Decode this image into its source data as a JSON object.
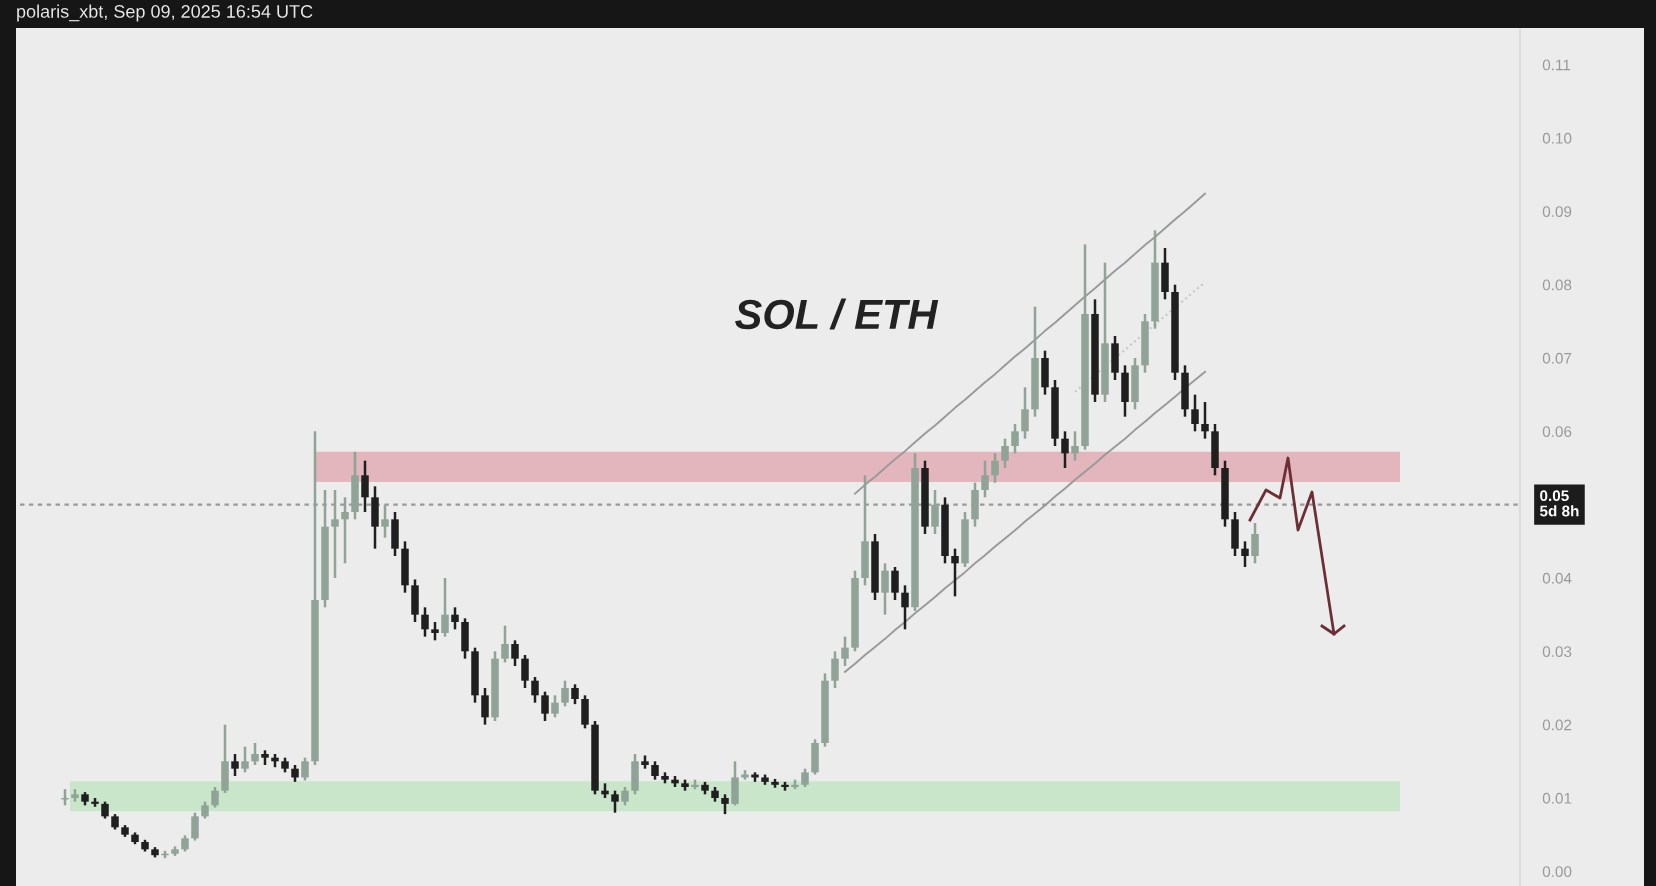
{
  "chart_data": {
    "type": "candlestick",
    "title": "SOL / ETH",
    "annotations": [
      "polaris_xbt, Sep 09, 2025 16:54 UTC"
    ],
    "categories": [
      null,
      null,
      null,
      null,
      null,
      null,
      null,
      null,
      null,
      null,
      null,
      null,
      null,
      null,
      null,
      null,
      null,
      null,
      null,
      null,
      null,
      null,
      null,
      null,
      null,
      null,
      null,
      null,
      null,
      null,
      null,
      null,
      null,
      null,
      null,
      null,
      null,
      null,
      null,
      null,
      null,
      null,
      null,
      null,
      null,
      null,
      null,
      null,
      null,
      null,
      null,
      null,
      null,
      null,
      null,
      null,
      null,
      null,
      null,
      null,
      null,
      null,
      null,
      null,
      null,
      null,
      null,
      null,
      null,
      null,
      null,
      null,
      null,
      null,
      null,
      null,
      null,
      null,
      null,
      null,
      null,
      null,
      null,
      null,
      null,
      null,
      null,
      null,
      null,
      null,
      null,
      null,
      null,
      null,
      null,
      null,
      null,
      null,
      null,
      null,
      null,
      null,
      null,
      null,
      null,
      null,
      null,
      null,
      null,
      null,
      null,
      null,
      null,
      null,
      null,
      null,
      null,
      null,
      null,
      null,
      null,
      null,
      null,
      null,
      null,
      null,
      null,
      null,
      null,
      null,
      null,
      null,
      null,
      null,
      null,
      null,
      null,
      null,
      null,
      null,
      null,
      null,
      null,
      null,
      null,
      null,
      null,
      null,
      null,
      null
    ],
    "ohlc": [
      null,
      null,
      null,
      null,
      [
        0.0098,
        0.0112,
        0.009,
        0.01
      ],
      [
        0.01,
        0.0112,
        0.0095,
        0.0105
      ],
      [
        0.0105,
        0.0108,
        0.009,
        0.0095
      ],
      [
        0.0095,
        0.01,
        0.0088,
        0.0092
      ],
      [
        0.0092,
        0.0095,
        0.0072,
        0.0075
      ],
      [
        0.0075,
        0.0078,
        0.0057,
        0.006
      ],
      [
        0.006,
        0.0063,
        0.0047,
        0.005
      ],
      [
        0.005,
        0.0053,
        0.0037,
        0.004
      ],
      [
        0.004,
        0.0043,
        0.0027,
        0.003
      ],
      [
        0.003,
        0.0033,
        0.0019,
        0.0022
      ],
      [
        0.0022,
        0.0028,
        0.0018,
        0.0024
      ],
      [
        0.0024,
        0.0034,
        0.0021,
        0.003
      ],
      [
        0.003,
        0.0049,
        0.0027,
        0.0045
      ],
      [
        0.0045,
        0.008,
        0.0042,
        0.0075
      ],
      [
        0.0075,
        0.0095,
        0.0072,
        0.009
      ],
      [
        0.009,
        0.0115,
        0.0087,
        0.011
      ],
      [
        0.011,
        0.02,
        0.0107,
        0.015
      ],
      [
        0.015,
        0.016,
        0.013,
        0.014
      ],
      [
        0.014,
        0.017,
        0.0135,
        0.015
      ],
      [
        0.015,
        0.0175,
        0.0145,
        0.016
      ],
      [
        0.016,
        0.0165,
        0.0145,
        0.0155
      ],
      [
        0.0155,
        0.016,
        0.0142,
        0.015
      ],
      [
        0.015,
        0.0155,
        0.0135,
        0.014
      ],
      [
        0.014,
        0.0145,
        0.0122,
        0.0128
      ],
      [
        0.0128,
        0.0155,
        0.0124,
        0.015
      ],
      [
        0.015,
        0.06,
        0.0145,
        0.037
      ],
      [
        0.037,
        0.052,
        0.036,
        0.047
      ],
      [
        0.047,
        0.052,
        0.04,
        0.048
      ],
      [
        0.048,
        0.051,
        0.042,
        0.049
      ],
      [
        0.049,
        0.0572,
        0.048,
        0.054
      ],
      [
        0.054,
        0.056,
        0.049,
        0.051
      ],
      [
        0.051,
        0.0525,
        0.044,
        0.047
      ],
      [
        0.047,
        0.05,
        0.0455,
        0.048
      ],
      [
        0.048,
        0.049,
        0.043,
        0.044
      ],
      [
        0.044,
        0.045,
        0.038,
        0.039
      ],
      [
        0.039,
        0.0398,
        0.034,
        0.035
      ],
      [
        0.035,
        0.036,
        0.032,
        0.033
      ],
      [
        0.033,
        0.034,
        0.0315,
        0.0325
      ],
      [
        0.0325,
        0.04,
        0.032,
        0.035
      ],
      [
        0.035,
        0.036,
        0.033,
        0.034
      ],
      [
        0.034,
        0.0345,
        0.029,
        0.03
      ],
      [
        0.03,
        0.0305,
        0.023,
        0.024
      ],
      [
        0.024,
        0.025,
        0.02,
        0.021
      ],
      [
        0.021,
        0.03,
        0.0205,
        0.029
      ],
      [
        0.029,
        0.0335,
        0.0285,
        0.031
      ],
      [
        0.031,
        0.0315,
        0.028,
        0.029
      ],
      [
        0.029,
        0.0295,
        0.025,
        0.026
      ],
      [
        0.026,
        0.0265,
        0.023,
        0.024
      ],
      [
        0.024,
        0.0245,
        0.0205,
        0.0215
      ],
      [
        0.0215,
        0.024,
        0.021,
        0.023
      ],
      [
        0.023,
        0.026,
        0.0225,
        0.025
      ],
      [
        0.025,
        0.0255,
        0.0228,
        0.0235
      ],
      [
        0.0235,
        0.024,
        0.0195,
        0.02
      ],
      [
        0.02,
        0.0205,
        0.0105,
        0.011
      ],
      [
        0.011,
        0.012,
        0.01,
        0.0105
      ],
      [
        0.0105,
        0.011,
        0.008,
        0.0095
      ],
      [
        0.0095,
        0.0115,
        0.009,
        0.011
      ],
      [
        0.011,
        0.016,
        0.0105,
        0.015
      ],
      [
        0.015,
        0.0158,
        0.014,
        0.0145
      ],
      [
        0.0145,
        0.015,
        0.0125,
        0.013
      ],
      [
        0.013,
        0.0135,
        0.012,
        0.0125
      ],
      [
        0.0125,
        0.013,
        0.0115,
        0.012
      ],
      [
        0.012,
        0.0125,
        0.011,
        0.0115
      ],
      [
        0.0115,
        0.0125,
        0.0112,
        0.0118
      ],
      [
        0.0118,
        0.0122,
        0.0105,
        0.011
      ],
      [
        0.011,
        0.0115,
        0.0095,
        0.01
      ],
      [
        0.01,
        0.0105,
        0.0078,
        0.0092
      ],
      [
        0.0092,
        0.015,
        0.009,
        0.0128
      ],
      [
        0.0128,
        0.0138,
        0.0125,
        0.0132
      ],
      [
        0.0132,
        0.0135,
        0.0122,
        0.0128
      ],
      [
        0.0128,
        0.0132,
        0.0118,
        0.0122
      ],
      [
        0.0122,
        0.0126,
        0.0114,
        0.0118
      ],
      [
        0.0118,
        0.0122,
        0.011,
        0.0115
      ],
      [
        0.0115,
        0.0125,
        0.0112,
        0.0118
      ],
      [
        0.0118,
        0.014,
        0.0115,
        0.0135
      ],
      [
        0.0135,
        0.018,
        0.0132,
        0.0175
      ],
      [
        0.0175,
        0.027,
        0.017,
        0.026
      ],
      [
        0.026,
        0.03,
        0.025,
        0.029
      ],
      [
        0.029,
        0.032,
        0.028,
        0.0305
      ],
      [
        0.0305,
        0.041,
        0.03,
        0.04
      ],
      [
        0.04,
        0.054,
        0.039,
        0.045
      ],
      [
        0.045,
        0.046,
        0.037,
        0.038
      ],
      [
        0.038,
        0.042,
        0.035,
        0.041
      ],
      [
        0.041,
        0.0415,
        0.037,
        0.038
      ],
      [
        0.038,
        0.039,
        0.033,
        0.036
      ],
      [
        0.036,
        0.057,
        0.0355,
        0.055
      ],
      [
        0.055,
        0.056,
        0.046,
        0.047
      ],
      [
        0.047,
        0.052,
        0.046,
        0.05
      ],
      [
        0.05,
        0.051,
        0.042,
        0.043
      ],
      [
        0.043,
        0.044,
        0.0375,
        0.042
      ],
      [
        0.042,
        0.049,
        0.0415,
        0.048
      ],
      [
        0.048,
        0.053,
        0.047,
        0.052
      ],
      [
        0.052,
        0.056,
        0.051,
        0.054
      ],
      [
        0.054,
        0.057,
        0.053,
        0.056
      ],
      [
        0.056,
        0.059,
        0.055,
        0.058
      ],
      [
        0.058,
        0.061,
        0.057,
        0.06
      ],
      [
        0.06,
        0.066,
        0.059,
        0.063
      ],
      [
        0.063,
        0.077,
        0.062,
        0.07
      ],
      [
        0.07,
        0.071,
        0.065,
        0.066
      ],
      [
        0.066,
        0.067,
        0.058,
        0.059
      ],
      [
        0.059,
        0.06,
        0.055,
        0.057
      ],
      [
        0.057,
        0.06,
        0.056,
        0.058
      ],
      [
        0.058,
        0.0855,
        0.0575,
        0.076
      ],
      [
        0.076,
        0.078,
        0.064,
        0.065
      ],
      [
        0.065,
        0.083,
        0.064,
        0.072
      ],
      [
        0.072,
        0.073,
        0.067,
        0.068
      ],
      [
        0.068,
        0.069,
        0.062,
        0.064
      ],
      [
        0.064,
        0.07,
        0.063,
        0.069
      ],
      [
        0.069,
        0.076,
        0.068,
        0.075
      ],
      [
        0.075,
        0.0874,
        0.074,
        0.083
      ],
      [
        0.083,
        0.085,
        0.078,
        0.079
      ],
      [
        0.079,
        0.08,
        0.067,
        0.068
      ],
      [
        0.068,
        0.069,
        0.062,
        0.063
      ],
      [
        0.063,
        0.065,
        0.06,
        0.061
      ],
      [
        0.061,
        0.064,
        0.059,
        0.06
      ],
      [
        0.06,
        0.061,
        0.054,
        0.055
      ],
      [
        0.055,
        0.056,
        0.047,
        0.048
      ],
      [
        0.048,
        0.049,
        0.043,
        0.044
      ],
      [
        0.044,
        0.045,
        0.0415,
        0.043
      ],
      [
        0.043,
        0.0475,
        0.042,
        0.046
      ],
      null,
      null,
      null,
      null,
      null,
      null,
      null,
      null,
      null,
      null,
      null,
      null,
      null,
      null,
      null,
      null,
      null,
      null,
      null,
      null,
      null,
      null,
      null,
      null,
      null,
      null
    ],
    "colors": [
      null,
      null,
      null,
      null,
      "#8fa397",
      "#8fa397",
      "#1f1f1f",
      "#1f1f1f",
      "#1f1f1f",
      "#1f1f1f",
      "#1f1f1f",
      "#1f1f1f",
      "#1f1f1f",
      "#1f1f1f",
      "#8fa397",
      "#8fa397",
      "#8fa397",
      "#8fa397",
      "#8fa397",
      "#8fa397",
      "#8fa397",
      "#1f1f1f",
      "#8fa397",
      "#8fa397",
      "#1f1f1f",
      "#1f1f1f",
      "#1f1f1f",
      "#1f1f1f",
      "#8fa397",
      "#8fa397",
      "#8fa397",
      "#8fa397",
      "#8fa397",
      "#8fa397",
      "#1f1f1f",
      "#1f1f1f",
      "#8fa397",
      "#1f1f1f",
      "#1f1f1f",
      "#1f1f1f",
      "#1f1f1f",
      "#1f1f1f",
      "#8fa397",
      "#1f1f1f",
      "#1f1f1f",
      "#1f1f1f",
      "#1f1f1f",
      "#8fa397",
      "#8fa397",
      "#1f1f1f",
      "#1f1f1f",
      "#1f1f1f",
      "#1f1f1f",
      "#8fa397",
      "#8fa397",
      "#1f1f1f",
      "#1f1f1f",
      "#1f1f1f",
      "#1f1f1f",
      "#1f1f1f",
      "#8fa397",
      "#8fa397",
      "#1f1f1f",
      "#1f1f1f",
      "#1f1f1f",
      "#1f1f1f",
      "#1f1f1f",
      "#8fa397",
      "#1f1f1f",
      "#1f1f1f",
      "#1f1f1f",
      "#8fa397",
      "#8fa397",
      "#1f1f1f",
      "#1f1f1f",
      "#1f1f1f",
      "#1f1f1f",
      "#8fa397",
      "#8fa397",
      "#8fa397",
      "#8fa397",
      "#8fa397",
      "#8fa397",
      "#8fa397",
      "#8fa397",
      "#1f1f1f",
      "#8fa397",
      "#1f1f1f",
      "#1f1f1f",
      "#8fa397",
      "#1f1f1f",
      "#8fa397",
      "#1f1f1f",
      "#1f1f1f",
      "#8fa397",
      "#8fa397",
      "#8fa397",
      "#8fa397",
      "#8fa397",
      "#8fa397",
      "#8fa397",
      "#8fa397",
      "#1f1f1f",
      "#1f1f1f",
      "#1f1f1f",
      "#8fa397",
      "#8fa397",
      "#1f1f1f",
      "#8fa397",
      "#1f1f1f",
      "#1f1f1f",
      "#8fa397",
      "#8fa397",
      "#8fa397",
      "#1f1f1f",
      "#1f1f1f",
      "#1f1f1f",
      "#1f1f1f",
      "#1f1f1f",
      "#1f1f1f",
      "#1f1f1f",
      "#1f1f1f",
      "#1f1f1f",
      "#8fa397",
      null,
      null,
      null,
      null,
      null,
      null,
      null,
      null,
      null,
      null,
      null,
      null,
      null,
      null,
      null,
      null,
      null,
      null,
      null,
      null,
      null,
      null,
      null,
      null,
      null,
      null
    ],
    "series": [
      {
        "type": "line",
        "color": "#9a9a9a",
        "line_style": "solid",
        "values": [
          null,
          null,
          null,
          null,
          null,
          null,
          null,
          null,
          null,
          null,
          null,
          null,
          null,
          null,
          null,
          null,
          null,
          null,
          null,
          null,
          null,
          null,
          null,
          null,
          null,
          null,
          null,
          null,
          null,
          null,
          null,
          null,
          null,
          null,
          null,
          null,
          null,
          null,
          null,
          null,
          null,
          null,
          null,
          null,
          null,
          null,
          null,
          null,
          null,
          null,
          null,
          null,
          null,
          null,
          null,
          null,
          null,
          null,
          null,
          null,
          null,
          null,
          null,
          null,
          null,
          null,
          null,
          null,
          null,
          null,
          null,
          null,
          null,
          null,
          null,
          null,
          null,
          null,
          null,
          null,
          null,
          null,
          0.0272,
          0.0283,
          0.0295,
          0.0306,
          0.0317,
          0.0329,
          0.034,
          0.0352,
          0.0363,
          0.0374,
          0.0386,
          0.0397,
          0.0408,
          0.042,
          0.0431,
          0.0443,
          0.0454,
          0.0465,
          0.0477,
          0.0488,
          0.0499,
          0.0511,
          0.0522,
          0.0534,
          0.0545,
          0.0556,
          0.0568,
          0.0579,
          0.059,
          0.0602,
          0.0613,
          0.0625,
          0.0636,
          0.0647,
          0.0659,
          0.067,
          0.0681,
          null,
          null,
          null,
          null,
          null,
          null,
          null,
          null,
          null,
          null,
          null,
          null,
          null,
          null,
          null,
          null,
          null,
          null,
          null,
          null,
          null,
          null,
          null,
          null,
          null,
          null,
          null,
          null,
          null,
          null,
          null
        ]
      },
      {
        "type": "line",
        "color": "#9a9a9a",
        "line_style": "solid",
        "values": [
          null,
          null,
          null,
          null,
          null,
          null,
          null,
          null,
          null,
          null,
          null,
          null,
          null,
          null,
          null,
          null,
          null,
          null,
          null,
          null,
          null,
          null,
          null,
          null,
          null,
          null,
          null,
          null,
          null,
          null,
          null,
          null,
          null,
          null,
          null,
          null,
          null,
          null,
          null,
          null,
          null,
          null,
          null,
          null,
          null,
          null,
          null,
          null,
          null,
          null,
          null,
          null,
          null,
          null,
          null,
          null,
          null,
          null,
          null,
          null,
          null,
          null,
          null,
          null,
          null,
          null,
          null,
          null,
          null,
          null,
          null,
          null,
          null,
          null,
          null,
          null,
          null,
          null,
          null,
          null,
          null,
          null,
          null,
          0.0515,
          0.0527,
          0.0538,
          0.055,
          0.0562,
          0.0573,
          0.0585,
          0.0597,
          0.0608,
          0.062,
          0.0632,
          0.0643,
          0.0655,
          0.0667,
          0.0678,
          0.069,
          0.0702,
          0.0713,
          0.0725,
          0.0737,
          0.0748,
          0.076,
          0.0772,
          0.0784,
          0.0795,
          0.0807,
          0.0819,
          0.083,
          0.0842,
          0.0854,
          0.0865,
          0.0877,
          0.0889,
          0.09,
          0.0912,
          0.0924,
          null,
          null,
          null,
          null,
          null,
          null,
          null,
          null,
          null,
          null,
          null,
          null,
          null,
          null,
          null,
          null,
          null,
          null,
          null,
          null,
          null,
          null,
          null,
          null,
          null,
          null,
          null,
          null,
          null,
          null,
          null
        ]
      },
      {
        "type": "line",
        "color": "#c4c4c4",
        "line_style": "dotted",
        "values": [
          null,
          null,
          null,
          null,
          null,
          null,
          null,
          null,
          null,
          null,
          null,
          null,
          null,
          null,
          null,
          null,
          null,
          null,
          null,
          null,
          null,
          null,
          null,
          null,
          null,
          null,
          null,
          null,
          null,
          null,
          null,
          null,
          null,
          null,
          null,
          null,
          null,
          null,
          null,
          null,
          null,
          null,
          null,
          null,
          null,
          null,
          null,
          null,
          null,
          null,
          null,
          null,
          null,
          null,
          null,
          null,
          null,
          null,
          null,
          null,
          null,
          null,
          null,
          null,
          null,
          null,
          null,
          null,
          null,
          null,
          null,
          null,
          null,
          null,
          null,
          null,
          null,
          null,
          null,
          null,
          null,
          null,
          null,
          null,
          null,
          null,
          null,
          null,
          null,
          null,
          null,
          null,
          null,
          null,
          null,
          null,
          null,
          null,
          null,
          null,
          null,
          null,
          null,
          null,
          null,
          0.0654,
          0.0665,
          0.0677,
          0.0688,
          0.07,
          0.0711,
          0.0723,
          0.0734,
          0.0746,
          0.0757,
          0.0769,
          0.078,
          0.0792,
          0.0803,
          null,
          null,
          null,
          null,
          null,
          null,
          null,
          null,
          null,
          null,
          null,
          null,
          null,
          null,
          null,
          null,
          null,
          null,
          null,
          null,
          null,
          null,
          null,
          null,
          null,
          null,
          null,
          null,
          null,
          null,
          null
        ]
      }
    ],
    "ylim": [
      -0.002,
      0.115
    ],
    "yticks": [
      {
        "value": 0,
        "label": "0.00"
      },
      {
        "value": 0.01,
        "label": "0.01"
      },
      {
        "value": 0.02,
        "label": "0.02"
      },
      {
        "value": 0.03,
        "label": "0.03"
      },
      {
        "value": 0.04,
        "label": "0.04"
      },
      {
        "value": 0.06,
        "label": "0.06"
      },
      {
        "value": 0.07,
        "label": "0.07"
      },
      {
        "value": 0.08,
        "label": "0.08"
      },
      {
        "value": 0.09,
        "label": "0.09"
      },
      {
        "value": 0.1,
        "label": "0.10"
      },
      {
        "value": 0.11,
        "label": "0.11"
      }
    ],
    "ref_lines": [
      {
        "axis": "y",
        "value": 0.05,
        "label": "0.05\n5d 8h",
        "color": "#9a9a9a",
        "line_style": "dotted"
      }
    ],
    "bands": [
      {
        "axis": "y",
        "from": 0.0531,
        "to": 0.0572,
        "color": "#e3b5bd"
      },
      {
        "axis": "y",
        "from": 0.0082,
        "to": 0.0123,
        "color": "#c9e6cb"
      }
    ],
    "grid": false,
    "legend": false
  }
}
